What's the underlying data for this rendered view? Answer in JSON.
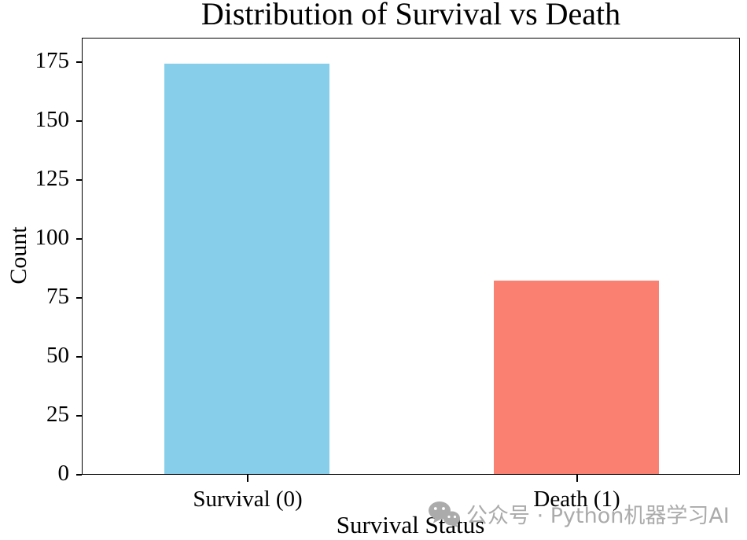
{
  "chart_data": {
    "type": "bar",
    "title": "Distribution of Survival vs Death",
    "xlabel": "Survival Status",
    "ylabel": "Count",
    "categories": [
      "Survival (0)",
      "Death (1)"
    ],
    "values": [
      174,
      82
    ],
    "bar_colors": [
      "#87CEEB",
      "#FA8072"
    ],
    "ylim": [
      0,
      185.3
    ],
    "y_ticks": [
      0,
      25,
      50,
      75,
      100,
      125,
      150,
      175
    ],
    "grid": false,
    "legend": null
  },
  "watermark": {
    "icon": "wechat-icon",
    "text": "公众号 · Python机器学习AI",
    "color": "#ABABAB"
  }
}
